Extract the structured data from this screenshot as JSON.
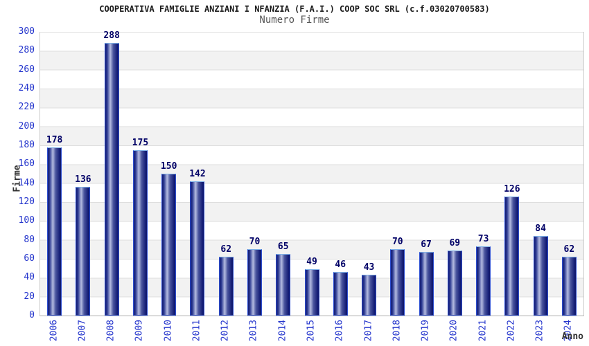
{
  "header": {
    "title": "COOPERATIVA FAMIGLIE ANZIANI I NFANZIA (F.A.I.) COOP SOC SRL (c.f.03020700583)",
    "subtitle": "Numero Firme"
  },
  "chart_data": {
    "type": "bar",
    "title": "COOPERATIVA FAMIGLIE ANZIANI I NFANZIA (F.A.I.) COOP SOC SRL (c.f.03020700583)",
    "subtitle": "Numero Firme",
    "xlabel": "Anno",
    "ylabel": "Firme",
    "categories": [
      "2006",
      "2007",
      "2008",
      "2009",
      "2010",
      "2011",
      "2012",
      "2013",
      "2014",
      "2015",
      "2016",
      "2017",
      "2018",
      "2019",
      "2020",
      "2021",
      "2022",
      "2023",
      "2024"
    ],
    "values": [
      178,
      136,
      288,
      175,
      150,
      142,
      62,
      70,
      65,
      49,
      46,
      43,
      70,
      67,
      69,
      73,
      126,
      84,
      62
    ],
    "ylim": [
      0,
      300
    ],
    "ytick_step": 20,
    "legend": "none",
    "grid": "horizontal-gridlines-with-alternating-bands",
    "value_labels": "above-bars",
    "colors": {
      "bar_dark": "#121b74",
      "bar_highlight": "#b4bbe0",
      "bar_outline": "#2e4fd0",
      "bar_outline_top": "#7fb2e8",
      "tick_label": "#2233cc",
      "value_label": "#000066",
      "band_gray": "#f2f2f2",
      "gridline": "#dedede",
      "title_text": "#1a1a1a",
      "subtitle_text": "#555555",
      "axis_label_text": "#333333"
    }
  }
}
